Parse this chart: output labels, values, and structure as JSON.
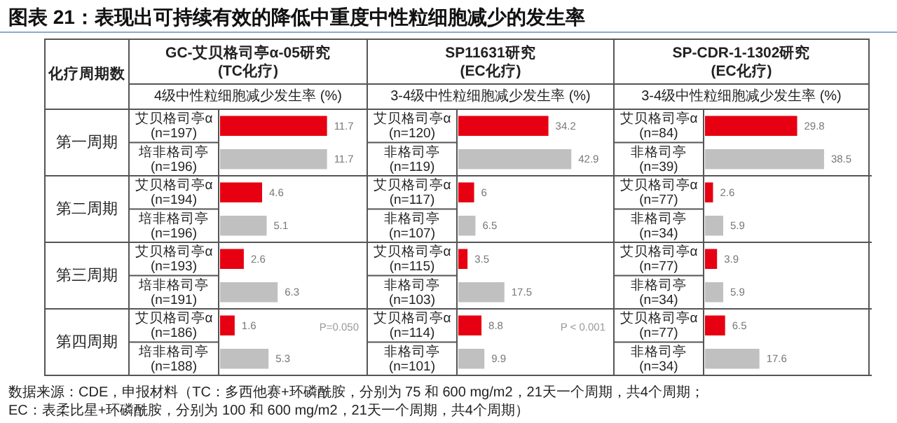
{
  "chart_data": [
    {
      "type": "other",
      "title": "图表 21：表现出可持续有效的降低中重度中性粒细胞减少的发生率",
      "annotations": [
        "化疗周期数",
        "第一周期",
        "第二周期",
        "第三周期",
        "第四周期",
        "数据来源：CDE，申报材料（TC：多西他赛+环磷酰胺，分别为 75 和 600 mg/m2，21天一个周期，共4个周期；EC：表柔比星+环磷酰胺，分别为 100 和 600 mg/m2，21天一个周期，共4个周期）"
      ]
    },
    {
      "type": "bar",
      "orientation": "horizontal",
      "data_labels": true,
      "title": "GC-艾贝格司亭α-05研究",
      "subtitle": "(TC化疗)",
      "xlabel": "4级中性粒细胞减少发生率 (%)",
      "categories": [
        "艾贝格司亭α\n(n=197)",
        "培非格司亭\n(n=196)",
        "艾贝格司亭α\n(n=194)",
        "培非格司亭\n(n=196)",
        "艾贝格司亭α\n(n=193)",
        "培非格司亭\n(n=191)",
        "艾贝格司亭α\n(n=186)",
        "培非格司亭\n(n=188)"
      ],
      "values": [
        11.7,
        11.7,
        4.6,
        5.1,
        2.6,
        6.3,
        1.6,
        5.3
      ],
      "colors": [
        "#e60012",
        "#c0c0c0",
        "#e60012",
        "#c0c0c0",
        "#e60012",
        "#c0c0c0",
        "#e60012",
        "#c0c0c0"
      ],
      "annotations": [
        "P=0.050"
      ]
    },
    {
      "type": "bar",
      "orientation": "horizontal",
      "data_labels": true,
      "title": "SP11631研究",
      "subtitle": "(EC化疗)",
      "xlabel": "3-4级中性粒细胞减少发生率 (%)",
      "categories": [
        "艾贝格司亭α\n(n=120)",
        "非格司亭\n(n=119)",
        "艾贝格司亭α\n(n=117)",
        "非格司亭\n(n=107)",
        "艾贝格司亭α\n(n=115)",
        "非格司亭\n(n=103)",
        "艾贝格司亭α\n(n=114)",
        "非格司亭\n(n=101)"
      ],
      "values": [
        34.2,
        42.9,
        6,
        6.5,
        3.5,
        17.5,
        8.8,
        9.9
      ],
      "colors": [
        "#e60012",
        "#c0c0c0",
        "#e60012",
        "#c0c0c0",
        "#e60012",
        "#c0c0c0",
        "#e60012",
        "#c0c0c0"
      ],
      "annotations": [
        "P < 0.001"
      ]
    },
    {
      "type": "bar",
      "orientation": "horizontal",
      "data_labels": true,
      "title": "SP-CDR-1-1302研究",
      "subtitle": "(EC化疗)",
      "xlabel": "3-4级中性粒细胞减少发生率 (%)",
      "categories": [
        "艾贝格司亭α\n(n=84)",
        "非格司亭\n(n=39)",
        "艾贝格司亭α\n(n=77)",
        "非格司亭\n(n=34)",
        "艾贝格司亭α\n(n=77)",
        "非格司亭\n(n=34)",
        "艾贝格司亭α\n(n=77)",
        "非格司亭\n(n=34)"
      ],
      "values": [
        29.8,
        38.5,
        2.6,
        5.9,
        3.9,
        5.9,
        6.5,
        17.6
      ],
      "colors": [
        "#e60012",
        "#c0c0c0",
        "#e60012",
        "#c0c0c0",
        "#e60012",
        "#c0c0c0",
        "#e60012",
        "#c0c0c0"
      ]
    }
  ]
}
